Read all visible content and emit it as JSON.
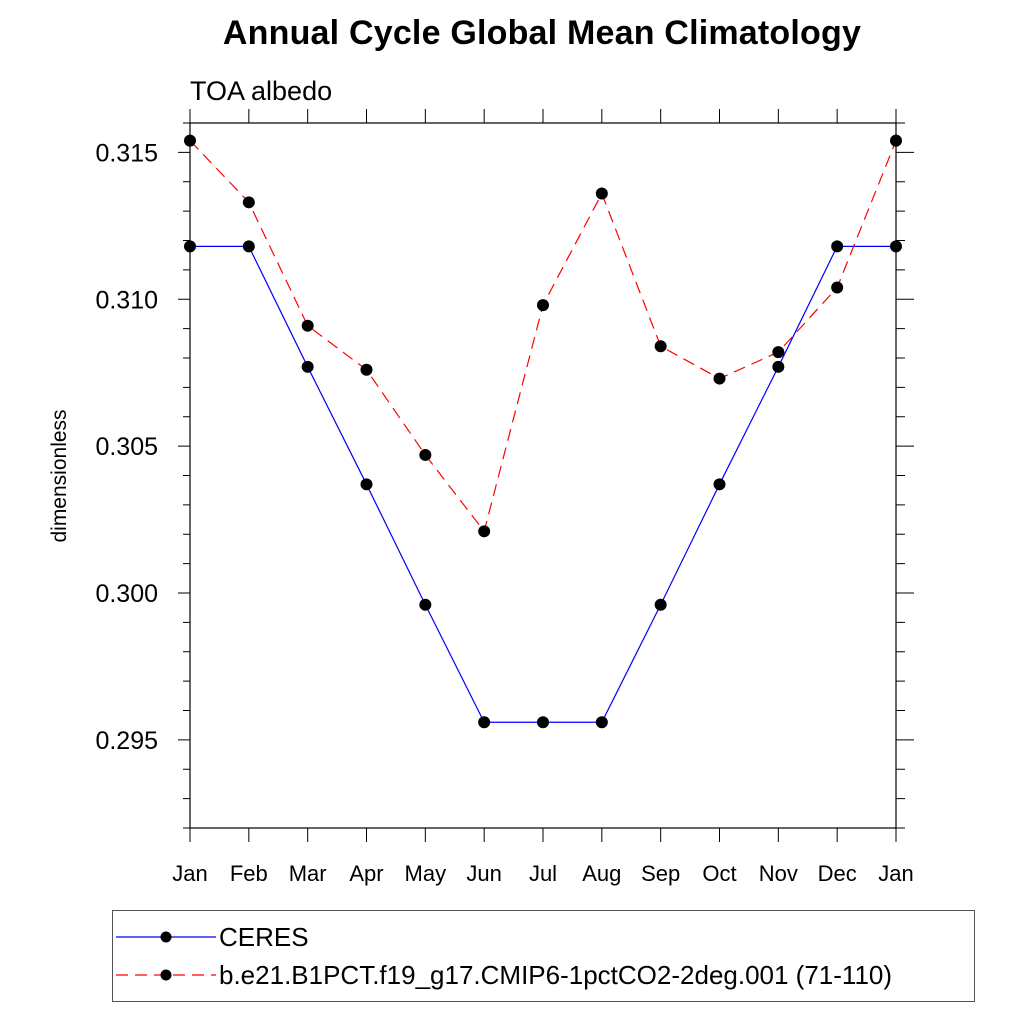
{
  "chart_data": {
    "type": "line",
    "title": "Annual Cycle Global Mean Climatology",
    "subtitle": "TOA albedo",
    "xlabel": "",
    "ylabel": "dimensionless",
    "categories": [
      "Jan",
      "Feb",
      "Mar",
      "Apr",
      "May",
      "Jun",
      "Jul",
      "Aug",
      "Sep",
      "Oct",
      "Nov",
      "Dec",
      "Jan"
    ],
    "ylim": [
      0.292,
      0.316
    ],
    "yticks": [
      0.295,
      0.3,
      0.305,
      0.31,
      0.315
    ],
    "ytick_labels": [
      "0.295",
      "0.300",
      "0.305",
      "0.310",
      "0.315"
    ],
    "grid": false,
    "legend_position": "bottom",
    "series": [
      {
        "name": "CERES",
        "color": "#0000ff",
        "style": "solid",
        "values": [
          0.3118,
          0.3118,
          0.3077,
          0.3037,
          0.2996,
          0.2956,
          0.2956,
          0.2956,
          0.2996,
          0.3037,
          0.3077,
          0.3118,
          0.3118
        ]
      },
      {
        "name": "b.e21.B1PCT.f19_g17.CMIP6-1pctCO2-2deg.001 (71-110)",
        "color": "#ff0000",
        "style": "dashed",
        "values": [
          0.3154,
          0.3133,
          0.3091,
          0.3076,
          0.3047,
          0.3021,
          0.3098,
          0.3136,
          0.3084,
          0.3073,
          0.3082,
          0.3104,
          0.3154
        ]
      }
    ]
  }
}
